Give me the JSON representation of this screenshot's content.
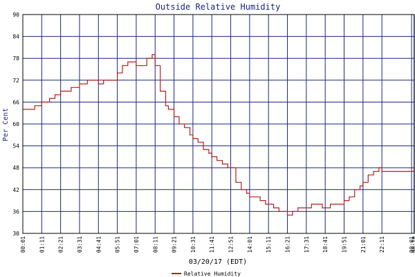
{
  "chart_data": {
    "type": "line",
    "title": "Outside Relative Humidity",
    "xlabel": "03/20/17 (EDT)",
    "ylabel": "Per Cent",
    "ylim": [
      30,
      90
    ],
    "y_ticks": [
      "30",
      "36",
      "42",
      "48",
      "54",
      "60",
      "66",
      "72",
      "78",
      "84",
      "90"
    ],
    "x_ticks": [
      "00:01",
      "01:11",
      "02:21",
      "03:31",
      "04:41",
      "05:51",
      "07:01",
      "08:11",
      "09:21",
      "10:31",
      "11:41",
      "12:51",
      "14:01",
      "15:11",
      "16:21",
      "17:31",
      "18:41",
      "19:51",
      "21:01",
      "22:11",
      "00:01",
      "00:10"
    ],
    "grid": true,
    "legend": "bottom-center",
    "colors": {
      "background": "#ffffff",
      "grid": "#1a237e",
      "axes": "#000000",
      "title": "#1a237e",
      "series": "#b71c1c"
    },
    "series": [
      {
        "name": "Relative Humidity",
        "x": [
          "00:01",
          "00:30",
          "00:45",
          "01:00",
          "01:11",
          "01:40",
          "02:00",
          "02:21",
          "02:45",
          "03:00",
          "03:31",
          "04:00",
          "04:30",
          "04:41",
          "05:00",
          "05:30",
          "05:51",
          "06:10",
          "06:30",
          "06:45",
          "07:01",
          "07:20",
          "07:40",
          "08:00",
          "08:11",
          "08:30",
          "08:50",
          "09:00",
          "09:21",
          "09:40",
          "10:00",
          "10:20",
          "10:31",
          "10:50",
          "11:10",
          "11:30",
          "11:41",
          "12:00",
          "12:20",
          "12:40",
          "12:51",
          "13:10",
          "13:30",
          "13:50",
          "14:01",
          "14:20",
          "14:40",
          "15:00",
          "15:11",
          "15:30",
          "15:50",
          "16:00",
          "16:21",
          "16:40",
          "17:00",
          "17:20",
          "17:31",
          "17:50",
          "18:10",
          "18:30",
          "18:41",
          "19:00",
          "19:20",
          "19:40",
          "19:51",
          "20:10",
          "20:30",
          "20:50",
          "21:01",
          "21:20",
          "21:40",
          "22:00",
          "22:11",
          "22:30",
          "22:50",
          "23:10",
          "23:30",
          "23:50",
          "00:01",
          "00:10"
        ],
        "values": [
          64,
          64,
          65,
          65,
          66,
          67,
          68,
          69,
          69,
          70,
          71,
          72,
          72,
          71,
          72,
          72,
          74,
          76,
          77,
          77,
          76,
          76,
          78,
          79,
          76,
          69,
          65,
          64,
          62,
          60,
          59,
          57,
          56,
          55,
          53,
          52,
          51,
          50,
          49,
          48,
          48,
          44,
          42,
          41,
          40,
          40,
          39,
          38,
          38,
          37,
          36,
          36,
          35,
          36,
          37,
          37,
          37,
          38,
          38,
          37,
          37,
          38,
          38,
          38,
          39,
          40,
          42,
          43,
          44,
          46,
          47,
          48,
          47,
          47,
          47,
          47,
          47,
          47,
          47,
          48
        ]
      }
    ]
  }
}
